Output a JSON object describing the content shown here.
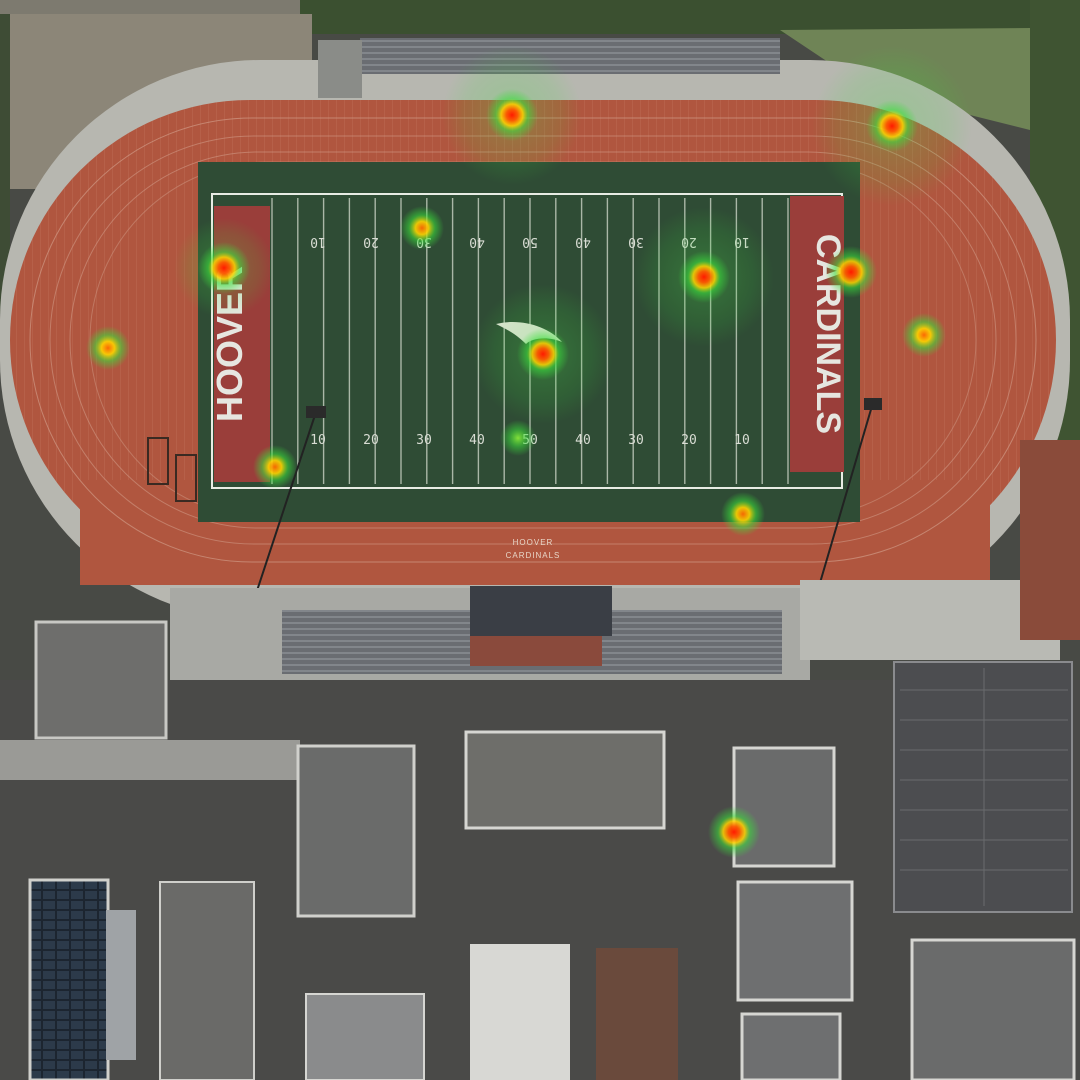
{
  "map": {
    "field_endzone_left": "HOOVER",
    "field_endzone_right": "CARDINALS",
    "track_lettering": [
      "HOOVER",
      "CARDINALS"
    ],
    "yard_numbers_top": [
      "10",
      "20",
      "30",
      "40",
      "50",
      "40",
      "30",
      "20",
      "10"
    ],
    "yard_numbers_bottom": [
      "10",
      "20",
      "30",
      "40",
      "50",
      "40",
      "30",
      "20",
      "10"
    ],
    "colors": {
      "track": "#b0563f",
      "field": "#2f4c35",
      "endzone": "#9a3e3a",
      "heat_high": "#ff2a00",
      "heat_mid": "#ffd400",
      "heat_low": "#3adf3a"
    }
  },
  "heatmap": {
    "points": [
      {
        "id": "h1",
        "intensity": 1.0
      },
      {
        "id": "h2",
        "intensity": 1.0
      },
      {
        "id": "h3",
        "intensity": 0.8
      },
      {
        "id": "h4",
        "intensity": 1.0
      },
      {
        "id": "h5",
        "intensity": 1.0
      },
      {
        "id": "h6",
        "intensity": 1.0
      },
      {
        "id": "h7",
        "intensity": 0.8
      },
      {
        "id": "h8",
        "intensity": 0.8
      },
      {
        "id": "h9",
        "intensity": 1.0
      },
      {
        "id": "h10",
        "intensity": 0.7
      },
      {
        "id": "h11",
        "intensity": 0.35
      },
      {
        "id": "h12",
        "intensity": 0.6
      },
      {
        "id": "h13",
        "intensity": 0.9
      }
    ]
  }
}
